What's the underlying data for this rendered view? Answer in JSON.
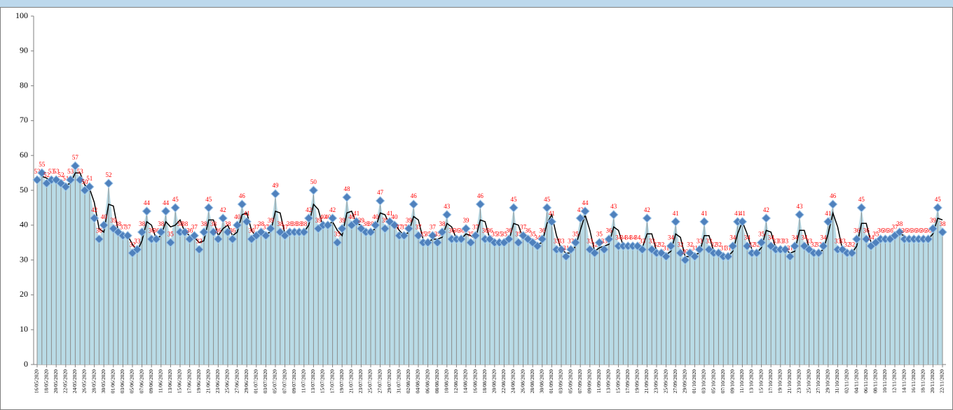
{
  "chart_data": {
    "type": "area",
    "categories": [
      "16/05/2020",
      null,
      "18/05/2020",
      null,
      "20/05/2020",
      null,
      "22/05/2020",
      null,
      "24/05/2020",
      null,
      "26/05/2020",
      null,
      "28/05/2020",
      null,
      "30/05/2020",
      null,
      "01/06/2020",
      null,
      "03/06/2020",
      null,
      "05/06/2020",
      null,
      "07/06/2020",
      null,
      "09/06/2020",
      null,
      "11/06/2020",
      null,
      "13/06/2020",
      null,
      "15/06/2020",
      null,
      "17/06/2020",
      null,
      "19/06/2020",
      null,
      "21/06/2020",
      null,
      "23/06/2020",
      null,
      "25/06/2020",
      null,
      "27/06/2020",
      null,
      "29/06/2020",
      null,
      "01/07/2020",
      null,
      "03/07/2020",
      null,
      "05/07/2020",
      null,
      "07/07/2020",
      null,
      "09/07/2020",
      null,
      "11/07/2020",
      null,
      "13/07/2020",
      null,
      "15/07/2020",
      null,
      "17/07/2020",
      null,
      "19/07/2020",
      null,
      "21/07/2020",
      null,
      "23/07/2020",
      null,
      "25/07/2020",
      null,
      "27/07/2020",
      null,
      "29/07/2020",
      null,
      "31/07/2020",
      null,
      "02/08/2020",
      null,
      "04/08/2020",
      null,
      "06/08/2020",
      null,
      "08/08/2020",
      null,
      "10/08/2020",
      null,
      "12/08/2020",
      null,
      "14/08/2020",
      null,
      "16/08/2020",
      null,
      "18/08/2020",
      null,
      "20/08/2020",
      null,
      "22/08/2020",
      null,
      "24/08/2020",
      null,
      "26/08/2020",
      null,
      "28/08/2020",
      null,
      "30/08/2020",
      null,
      "01/09/2020",
      null,
      "03/09/2020",
      null,
      "05/09/2020",
      null,
      "07/09/2020",
      null,
      "09/09/2020",
      null,
      "11/09/2020",
      null,
      "13/09/2020",
      null,
      "15/09/2020",
      null,
      "17/09/2020",
      null,
      "19/09/2020",
      null,
      "21/09/2020",
      null,
      "23/09/2020",
      null,
      "25/09/2020",
      null,
      "27/09/2020",
      null,
      "29/09/2020",
      null,
      "01/10/2020",
      null,
      "03/10/2020",
      null,
      "05/10/2020",
      null,
      "07/10/2020",
      null,
      "09/10/2020",
      null,
      "11/10/2020",
      null,
      "13/10/2020",
      null,
      "15/10/2020",
      null,
      "17/10/2020",
      null,
      "19/10/2020",
      null,
      "21/10/2020",
      null,
      "23/10/2020",
      null,
      "25/10/2020",
      null,
      "27/10/2020",
      null,
      "29/10/2020",
      null,
      "31/10/2020",
      null,
      "02/11/2020",
      null,
      "04/11/2020",
      null,
      "06/11/2020",
      null,
      "08/11/2020",
      null,
      "10/11/2020",
      null,
      "12/11/2020",
      null,
      "14/11/2020",
      null,
      "16/11/2020",
      null,
      "18/11/2020",
      null,
      "20/11/2020",
      null,
      "22/11/2020"
    ],
    "values": [
      53,
      55,
      52,
      53,
      53,
      52,
      51,
      53,
      57,
      53,
      50,
      51,
      42,
      36,
      40,
      52,
      39,
      38,
      37,
      37,
      32,
      33,
      38,
      44,
      36,
      36,
      38,
      44,
      35,
      45,
      38,
      38,
      36,
      37,
      33,
      38,
      45,
      38,
      36,
      42,
      38,
      36,
      40,
      46,
      41,
      36,
      37,
      38,
      37,
      39,
      49,
      38,
      37,
      38,
      38,
      38,
      38,
      42,
      50,
      39,
      40,
      40,
      42,
      35,
      39,
      48,
      40,
      41,
      39,
      38,
      38,
      40,
      47,
      39,
      41,
      40,
      37,
      37,
      39,
      46,
      37,
      35,
      35,
      37,
      35,
      38,
      43,
      36,
      36,
      36,
      39,
      35,
      37,
      46,
      36,
      36,
      35,
      35,
      35,
      36,
      45,
      35,
      37,
      36,
      35,
      34,
      36,
      45,
      41,
      33,
      33,
      31,
      33,
      35,
      42,
      44,
      33,
      32,
      35,
      33,
      36,
      43,
      34,
      34,
      34,
      34,
      34,
      33,
      42,
      33,
      32,
      32,
      31,
      34,
      41,
      32,
      30,
      32,
      31,
      33,
      41,
      33,
      32,
      32,
      31,
      31,
      34,
      41,
      41,
      34,
      32,
      32,
      35,
      42,
      34,
      33,
      33,
      33,
      31,
      34,
      43,
      34,
      33,
      32,
      32,
      34,
      41,
      46,
      33,
      33,
      32,
      32,
      36,
      45,
      36,
      34,
      35,
      36,
      36,
      36,
      37,
      38,
      36,
      36,
      36,
      36,
      36,
      36,
      39,
      45,
      38
    ],
    "color": "#4f81bd",
    "fill_color": "#b9dbe6",
    "drop_line_color": "#8c8c8c",
    "label_color": "#ff0000",
    "trendline": {
      "type": "moving-average",
      "period": 2,
      "color": "#000000"
    },
    "ylim": [
      0,
      100
    ],
    "yticks": [
      0,
      10,
      20,
      30,
      40,
      50,
      60,
      70,
      80,
      90,
      100
    ],
    "grid": false
  }
}
